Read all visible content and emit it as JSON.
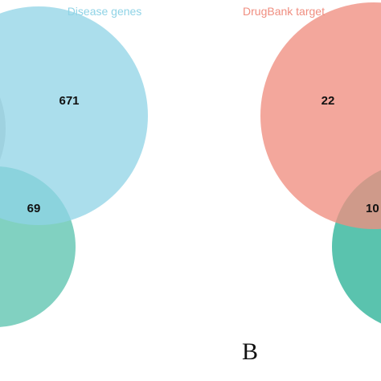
{
  "panels": [
    {
      "sets": [
        {
          "name": "Disease genes",
          "color": "#8fd3e6"
        },
        {
          "name": "",
          "color": "#3db8a0"
        },
        {
          "name": "",
          "color": "#b0b0b0"
        }
      ],
      "regions": [
        {
          "sets": [
            "Disease genes"
          ],
          "count": "671"
        },
        {
          "sets": [
            "Disease genes",
            "teal set"
          ],
          "count": "69"
        }
      ]
    },
    {
      "letter": "B",
      "sets": [
        {
          "name": "DrugBank target",
          "color": "#f08e80"
        },
        {
          "name": "",
          "color": "#3db8a0"
        }
      ],
      "regions": [
        {
          "sets": [
            "DrugBank target"
          ],
          "count": "22"
        },
        {
          "sets": [
            "DrugBank target",
            "teal set"
          ],
          "count": "10"
        }
      ]
    }
  ]
}
